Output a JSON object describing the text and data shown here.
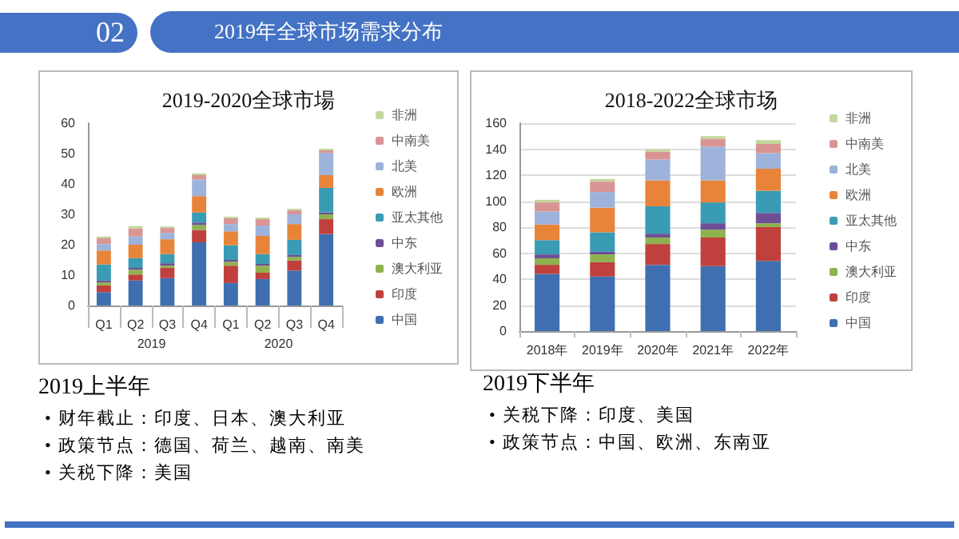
{
  "chart_data": [
    {
      "type": "other",
      "title": "2019年全球市场需求分布",
      "subtitle": "02"
    },
    {
      "type": "bar",
      "title": "2019-2020全球市場",
      "stacked": true,
      "legend": "right",
      "grid": false,
      "categories": [
        "Q1",
        "Q2",
        "Q3",
        "Q4",
        "Q1",
        "Q2",
        "Q3",
        "Q4"
      ],
      "annotations": [
        "2019",
        "2020"
      ],
      "ylim": [
        0,
        60
      ],
      "yticks": [
        0,
        10,
        20,
        30,
        40,
        50,
        60
      ],
      "series": [
        {
          "name": "中国",
          "color": "#3f6fb0",
          "values": [
            4.4,
            8.2,
            9.0,
            20.8,
            7.4,
            8.7,
            11.5,
            23.5
          ]
        },
        {
          "name": "印度",
          "color": "#c0403d",
          "values": [
            2.2,
            2.0,
            3.4,
            4.0,
            5.7,
            2.1,
            3.3,
            4.9
          ]
        },
        {
          "name": "澳大利亚",
          "color": "#8fb24f",
          "values": [
            1.0,
            1.6,
            0.7,
            1.7,
            1.3,
            2.3,
            1.2,
            1.6
          ]
        },
        {
          "name": "中东",
          "color": "#6e4f96",
          "values": [
            0.6,
            0.6,
            0.8,
            0.8,
            0.6,
            0.6,
            0.6,
            0.6
          ]
        },
        {
          "name": "亚太其他",
          "color": "#3a9bb5",
          "values": [
            5.3,
            3.2,
            3.0,
            3.3,
            4.8,
            3.2,
            5.0,
            8.1
          ]
        },
        {
          "name": "欧洲",
          "color": "#e8843a",
          "values": [
            4.6,
            4.4,
            4.9,
            5.4,
            4.6,
            6.0,
            5.2,
            4.2
          ]
        },
        {
          "name": "北美",
          "color": "#9db3dc",
          "values": [
            2.1,
            2.7,
            2.1,
            5.5,
            2.4,
            3.4,
            3.2,
            7.3
          ]
        },
        {
          "name": "中南美",
          "color": "#d99594",
          "values": [
            1.9,
            2.6,
            1.6,
            1.4,
            1.9,
            2.1,
            1.3,
            0.9
          ]
        },
        {
          "name": "非洲",
          "color": "#c3d69b",
          "values": [
            0.6,
            0.8,
            0.5,
            0.6,
            0.5,
            0.5,
            0.5,
            0.5
          ]
        }
      ]
    },
    {
      "type": "bar",
      "title": "2018-2022全球市场",
      "stacked": true,
      "legend": "right",
      "grid": "y",
      "categories": [
        "2018年",
        "2019年",
        "2020年",
        "2021年",
        "2022年"
      ],
      "ylim": [
        0,
        160
      ],
      "yticks": [
        0,
        20,
        40,
        60,
        80,
        100,
        120,
        140,
        160
      ],
      "series": [
        {
          "name": "中国",
          "color": "#3f6fb0",
          "values": [
            44,
            42,
            51,
            50,
            54
          ]
        },
        {
          "name": "印度",
          "color": "#c0403d",
          "values": [
            7,
            11,
            16,
            22,
            26
          ]
        },
        {
          "name": "澳大利亚",
          "color": "#8fb24f",
          "values": [
            5,
            6,
            5,
            6,
            3
          ]
        },
        {
          "name": "中东",
          "color": "#6e4f96",
          "values": [
            3,
            2,
            3,
            5,
            8
          ]
        },
        {
          "name": "亚太其他",
          "color": "#3a9bb5",
          "values": [
            11,
            15,
            21,
            16,
            17
          ]
        },
        {
          "name": "欧洲",
          "color": "#e8843a",
          "values": [
            12,
            19,
            20,
            17,
            17
          ]
        },
        {
          "name": "北美",
          "color": "#9db3dc",
          "values": [
            10,
            12,
            16,
            26,
            12
          ]
        },
        {
          "name": "中南美",
          "color": "#d99594",
          "values": [
            7,
            8,
            6,
            6,
            7
          ]
        },
        {
          "name": "非洲",
          "color": "#c3d69b",
          "values": [
            2,
            2,
            2,
            2,
            3
          ]
        }
      ]
    },
    {
      "type": "other",
      "title": "2019上半年",
      "annotations": [
        "• 财年截止：印度、日本、澳大利亚",
        "• 政策节点：德国、荷兰、越南、南美",
        "• 关税下降：美国"
      ]
    },
    {
      "type": "other",
      "title": "2019下半年",
      "annotations": [
        "• 关税下降：印度、美国",
        "• 政策节点：中国、欧洲、东南亚"
      ]
    }
  ]
}
